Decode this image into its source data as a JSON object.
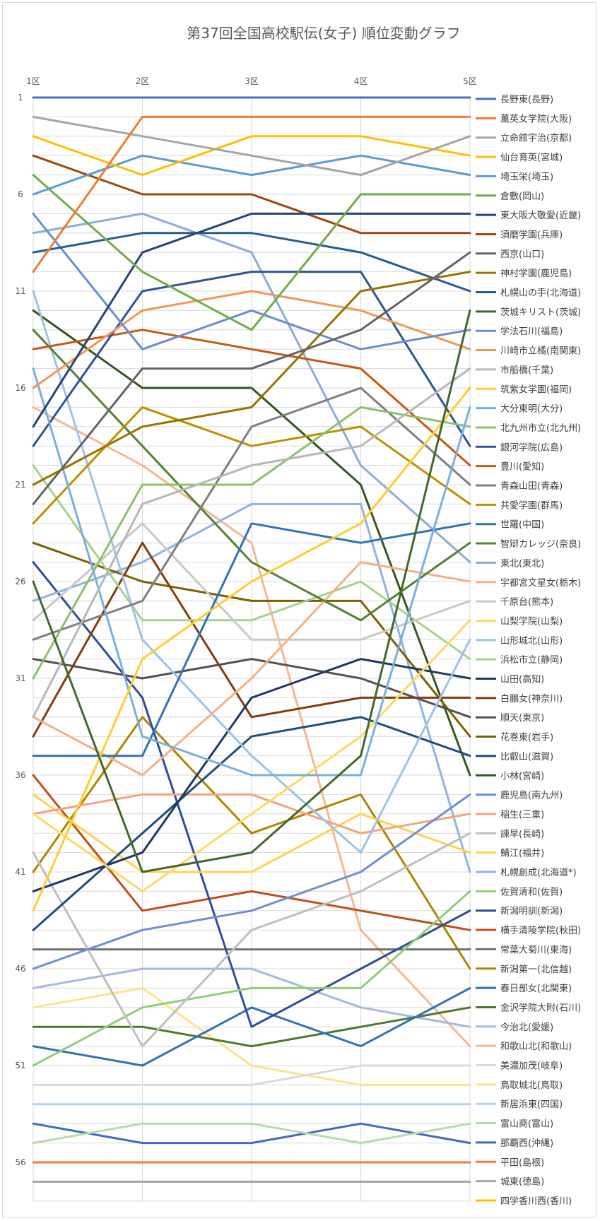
{
  "chart_data": {
    "type": "line",
    "title": "第37回全国高校駅伝(女子) 順位変動グラフ",
    "categories": [
      "1区",
      "2区",
      "3区",
      "4区",
      "5区"
    ],
    "y_ticks": [
      1,
      6,
      11,
      16,
      21,
      26,
      31,
      36,
      41,
      46,
      51,
      56
    ],
    "ylim": [
      1,
      58
    ],
    "y_reversed": true,
    "grid": true,
    "legend_position": "right",
    "series": [
      {
        "name": "長野東(長野)",
        "color": "#4472C4",
        "values": [
          1,
          1,
          1,
          1,
          1
        ]
      },
      {
        "name": "薫英女学院(大阪)",
        "color": "#ED7D31",
        "values": [
          10,
          2,
          2,
          2,
          2
        ]
      },
      {
        "name": "立命館宇治(京都)",
        "color": "#A5A5A5",
        "values": [
          2,
          3,
          4,
          5,
          3
        ]
      },
      {
        "name": "仙台育英(宮城)",
        "color": "#FFC000",
        "values": [
          3,
          5,
          3,
          3,
          4
        ]
      },
      {
        "name": "埼玉栄(埼玉)",
        "color": "#5B9BD5",
        "values": [
          6,
          4,
          5,
          4,
          5
        ]
      },
      {
        "name": "倉敷(岡山)",
        "color": "#70AD47",
        "values": [
          5,
          10,
          13,
          6,
          6
        ]
      },
      {
        "name": "東大阪大敬愛(近畿)",
        "color": "#264478",
        "values": [
          18,
          9,
          7,
          7,
          7
        ]
      },
      {
        "name": "須磨学園(兵庫)",
        "color": "#9E480E",
        "values": [
          4,
          6,
          6,
          8,
          8
        ]
      },
      {
        "name": "西京(山口)",
        "color": "#636363",
        "values": [
          22,
          15,
          15,
          13,
          9
        ]
      },
      {
        "name": "神村学園(鹿児島)",
        "color": "#997300",
        "values": [
          21,
          18,
          17,
          11,
          10
        ]
      },
      {
        "name": "札幌山の手(北海道)",
        "color": "#255E91",
        "values": [
          9,
          8,
          8,
          9,
          11
        ]
      },
      {
        "name": "茨城キリスト(茨城)",
        "color": "#43682B",
        "values": [
          26,
          41,
          40,
          35,
          12
        ]
      },
      {
        "name": "学法石川(福島)",
        "color": "#698ED0",
        "values": [
          7,
          14,
          12,
          14,
          13
        ]
      },
      {
        "name": "川崎市立橘(南関東)",
        "color": "#F1975A",
        "values": [
          16,
          12,
          11,
          12,
          14
        ]
      },
      {
        "name": "市船橋(千葉)",
        "color": "#B7B7B7",
        "values": [
          33,
          22,
          20,
          19,
          15
        ]
      },
      {
        "name": "筑紫女学園(福岡)",
        "color": "#FFCD33",
        "values": [
          43,
          30,
          26,
          23,
          16
        ]
      },
      {
        "name": "大分東明(大分)",
        "color": "#7CAFDD",
        "values": [
          15,
          34,
          36,
          36,
          17
        ]
      },
      {
        "name": "北九州市立(北九州)",
        "color": "#8CC168",
        "values": [
          31,
          21,
          21,
          17,
          18
        ]
      },
      {
        "name": "銀河学院(広島)",
        "color": "#2F5597",
        "values": [
          19,
          11,
          10,
          10,
          19
        ]
      },
      {
        "name": "豊川(愛知)",
        "color": "#C55A11",
        "values": [
          14,
          13,
          14,
          15,
          20
        ]
      },
      {
        "name": "青森山田(青森)",
        "color": "#7F7F7F",
        "values": [
          29,
          27,
          18,
          16,
          21
        ]
      },
      {
        "name": "共愛学園(群馬)",
        "color": "#BF9000",
        "values": [
          23,
          17,
          19,
          18,
          22
        ]
      },
      {
        "name": "世羅(中国)",
        "color": "#2E75B6",
        "values": [
          35,
          35,
          23,
          24,
          23
        ]
      },
      {
        "name": "智辯カレッジ(奈良)",
        "color": "#548235",
        "values": [
          13,
          19,
          25,
          28,
          24
        ]
      },
      {
        "name": "東北(東北)",
        "color": "#8FAADC",
        "values": [
          8,
          7,
          9,
          20,
          25
        ]
      },
      {
        "name": "宇都宮文星女(栃木)",
        "color": "#F4B183",
        "values": [
          33,
          36,
          31,
          25,
          26
        ]
      },
      {
        "name": "千原台(熊本)",
        "color": "#C9C9C9",
        "values": [
          28,
          23,
          29,
          29,
          27
        ]
      },
      {
        "name": "山梨学院(山梨)",
        "color": "#FFD966",
        "values": [
          38,
          42,
          38,
          34,
          28
        ]
      },
      {
        "name": "山形城北(山形)",
        "color": "#9DC3E6",
        "values": [
          11,
          29,
          35,
          40,
          29
        ]
      },
      {
        "name": "浜松市立(静岡)",
        "color": "#A9D18E",
        "values": [
          20,
          28,
          28,
          26,
          30
        ]
      },
      {
        "name": "山田(高知)",
        "color": "#203864",
        "values": [
          42,
          40,
          32,
          30,
          31
        ]
      },
      {
        "name": "白鵬女(神奈川)",
        "color": "#843C0C",
        "values": [
          34,
          24,
          33,
          32,
          32
        ]
      },
      {
        "name": "順天(東京)",
        "color": "#525252",
        "values": [
          30,
          31,
          30,
          31,
          33
        ]
      },
      {
        "name": "花巻東(岩手)",
        "color": "#7F6000",
        "values": [
          24,
          26,
          27,
          27,
          34
        ]
      },
      {
        "name": "比叡山(滋賀)",
        "color": "#1F4E79",
        "values": [
          44,
          39,
          34,
          33,
          35
        ]
      },
      {
        "name": "小林(宮崎)",
        "color": "#375623",
        "values": [
          12,
          16,
          16,
          21,
          36
        ]
      },
      {
        "name": "鹿児島(南九州)",
        "color": "#6F8FD3",
        "values": [
          46,
          44,
          43,
          41,
          37
        ]
      },
      {
        "name": "稲生(三重)",
        "color": "#F4A37C",
        "values": [
          38,
          37,
          37,
          39,
          38
        ]
      },
      {
        "name": "諫早(長崎)",
        "color": "#BFBFBF",
        "values": [
          40,
          50,
          44,
          42,
          39
        ]
      },
      {
        "name": "鯖江(福井)",
        "color": "#FFD34F",
        "values": [
          37,
          41,
          41,
          38,
          40
        ]
      },
      {
        "name": "札幌創成(北海道*)",
        "color": "#8EB4E3",
        "values": [
          27,
          25,
          22,
          22,
          41
        ]
      },
      {
        "name": "佐賀清和(佐賀)",
        "color": "#92CD7A",
        "values": [
          51,
          48,
          47,
          47,
          42
        ]
      },
      {
        "name": "新潟明訓(新潟)",
        "color": "#2E4E96",
        "values": [
          25,
          32,
          49,
          46,
          43
        ]
      },
      {
        "name": "横手清陵学院(秋田)",
        "color": "#C0501A",
        "values": [
          36,
          43,
          42,
          43,
          44
        ]
      },
      {
        "name": "常葉大菊川(東海)",
        "color": "#707070",
        "values": [
          45,
          45,
          45,
          45,
          45
        ]
      },
      {
        "name": "新潟第一(北信越)",
        "color": "#B08600",
        "values": [
          41,
          33,
          39,
          37,
          46
        ]
      },
      {
        "name": "春日部女(北関東)",
        "color": "#2F73B5",
        "values": [
          50,
          51,
          48,
          50,
          47
        ]
      },
      {
        "name": "金沢学院大附(石川)",
        "color": "#4E7A2E",
        "values": [
          49,
          49,
          50,
          49,
          48
        ]
      },
      {
        "name": "今治北(愛媛)",
        "color": "#A6B8E0",
        "values": [
          47,
          46,
          46,
          48,
          49
        ]
      },
      {
        "name": "和歌山北(和歌山)",
        "color": "#F5B895",
        "values": [
          17,
          20,
          24,
          44,
          50
        ]
      },
      {
        "name": "美濃加茂(岐阜)",
        "color": "#D9D9D9",
        "values": [
          52,
          52,
          52,
          51,
          51
        ]
      },
      {
        "name": "鳥取城北(鳥取)",
        "color": "#FFE38A",
        "values": [
          48,
          47,
          51,
          52,
          52
        ]
      },
      {
        "name": "新居浜東(四国)",
        "color": "#B4D1F0",
        "values": [
          53,
          53,
          53,
          53,
          53
        ]
      },
      {
        "name": "富山商(富山)",
        "color": "#B8DCA6",
        "values": [
          55,
          54,
          54,
          55,
          54
        ]
      },
      {
        "name": "那覇西(沖縄)",
        "color": "#4169C8",
        "values": [
          54,
          55,
          55,
          54,
          55
        ]
      },
      {
        "name": "平田(島根)",
        "color": "#ED7D31",
        "values": [
          56,
          56,
          56,
          56,
          56
        ]
      },
      {
        "name": "城東(徳島)",
        "color": "#A5A5A5",
        "values": [
          57,
          57,
          57,
          57,
          57
        ]
      },
      {
        "name": "四学香川西(香川)",
        "color": "#FFC000",
        "values": [
          null,
          null,
          null,
          null,
          null
        ]
      }
    ]
  }
}
